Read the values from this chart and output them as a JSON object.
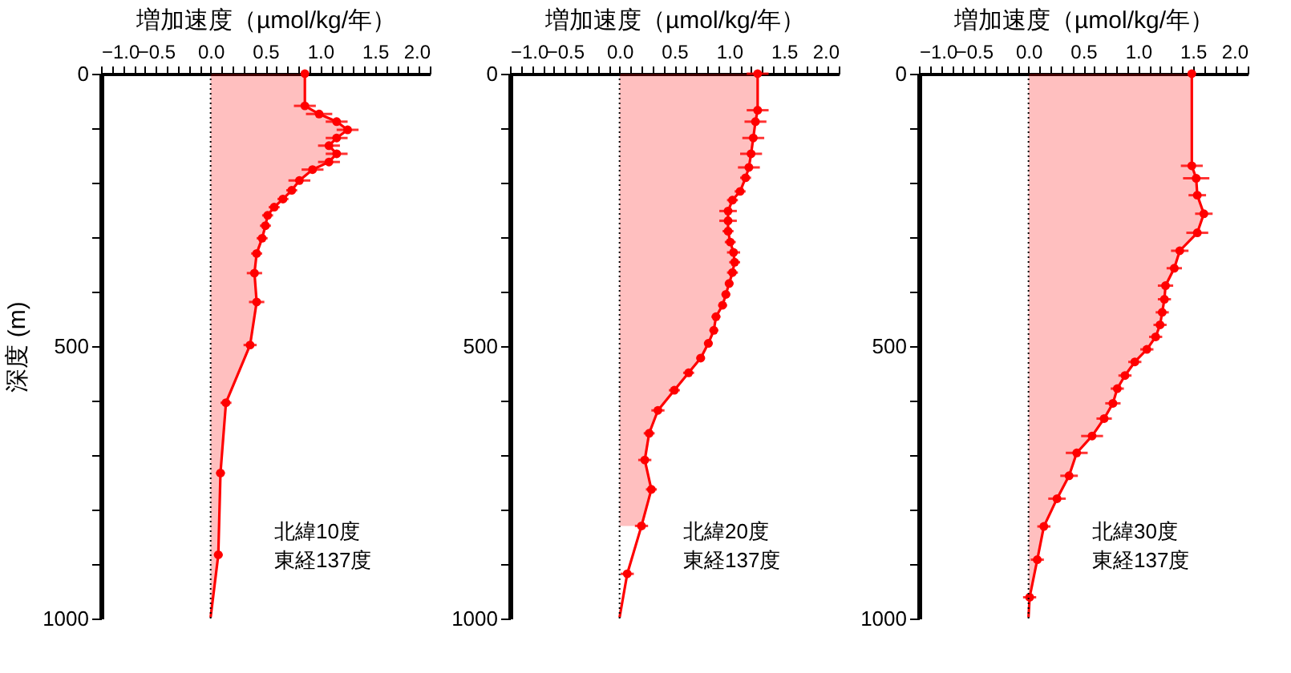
{
  "chart_data": [
    {
      "type": "line",
      "orientation": "horizontal",
      "xlabel": "増加速度（µmol/kg/年）",
      "ylabel": "深度 (m)",
      "xlim": [
        -1,
        2
      ],
      "ylim": [
        1000,
        0
      ],
      "xticks": [
        {
          "value": -1,
          "label": "−1.0"
        },
        {
          "value": -0.9,
          "label": null
        },
        {
          "value": -0.8,
          "label": null
        },
        {
          "value": -0.7,
          "label": null
        },
        {
          "value": -0.6,
          "label": null
        },
        {
          "value": -0.5,
          "label": "−0.5"
        },
        {
          "value": -0.4,
          "label": null
        },
        {
          "value": -0.3,
          "label": null
        },
        {
          "value": -0.2,
          "label": null
        },
        {
          "value": -0.1,
          "label": null
        },
        {
          "value": 0,
          "label": "0.0"
        },
        {
          "value": 0.1,
          "label": null
        },
        {
          "value": 0.2,
          "label": null
        },
        {
          "value": 0.3,
          "label": null
        },
        {
          "value": 0.4,
          "label": null
        },
        {
          "value": 0.5,
          "label": "0.5"
        },
        {
          "value": 0.6,
          "label": null
        },
        {
          "value": 0.7,
          "label": null
        },
        {
          "value": 0.8,
          "label": null
        },
        {
          "value": 0.9,
          "label": null
        },
        {
          "value": 1,
          "label": "1.0"
        },
        {
          "value": 1.1,
          "label": null
        },
        {
          "value": 1.2,
          "label": null
        },
        {
          "value": 1.3,
          "label": null
        },
        {
          "value": 1.4,
          "label": null
        },
        {
          "value": 1.5,
          "label": "1.5"
        },
        {
          "value": 1.6,
          "label": null
        },
        {
          "value": 1.7,
          "label": null
        },
        {
          "value": 1.8,
          "label": null
        },
        {
          "value": 1.9,
          "label": null
        },
        {
          "value": 2,
          "label": "2.0"
        }
      ],
      "yticks": [
        0,
        {
          "value": 100,
          "label": null
        },
        {
          "value": 200,
          "label": null
        },
        {
          "value": 300,
          "label": null
        },
        {
          "value": 400,
          "label": null
        },
        500,
        {
          "value": 600,
          "label": null
        },
        {
          "value": 700,
          "label": null
        },
        {
          "value": 800,
          "label": null
        },
        {
          "value": 900,
          "label": null
        },
        1000
      ],
      "ref_lines": [
        {
          "axis": "x",
          "value": 0,
          "color": "#000000",
          "line_style": "dotted"
        }
      ],
      "annotations": [
        "北緯10度",
        "東経137度"
      ],
      "series": [
        {
          "type": "area",
          "color": "#ff0000",
          "x": [
            0,
            59,
            74,
            88,
            103,
            118,
            132,
            147,
            162,
            176,
            196,
            214,
            230,
            245,
            260,
            279,
            302,
            330,
            366,
            419,
            498,
            604,
            733,
            883,
            998
          ],
          "values": [
            0.86,
            0.86,
            0.99,
            1.15,
            1.25,
            1.15,
            1.08,
            1.15,
            1.08,
            0.93,
            0.81,
            0.74,
            0.66,
            0.58,
            0.52,
            0.5,
            0.47,
            0.42,
            0.4,
            0.42,
            0.36,
            0.14,
            0.09,
            0.07,
            0.0
          ]
        },
        {
          "type": "scatter",
          "marker": "circle",
          "color": "#ff0000",
          "x": [
            0,
            59,
            74,
            88,
            103,
            118,
            132,
            147,
            162,
            176,
            196,
            214,
            230,
            245,
            260,
            279,
            302,
            330,
            366,
            419,
            498,
            604,
            733,
            883
          ],
          "values": [
            0.86,
            0.86,
            0.99,
            1.15,
            1.25,
            1.15,
            1.08,
            1.15,
            1.08,
            0.93,
            0.81,
            0.74,
            0.66,
            0.58,
            0.52,
            0.5,
            0.47,
            0.42,
            0.4,
            0.42,
            0.36,
            0.14,
            0.09,
            0.07
          ],
          "xerrors": [
            null,
            0.1,
            0.12,
            0.1,
            0.1,
            0.1,
            0.1,
            0.1,
            0.1,
            0.1,
            0.1,
            0.05,
            0.05,
            0.05,
            0.05,
            0.05,
            0.05,
            0.05,
            0.07,
            0.07,
            0.06,
            0.05,
            0.04,
            0.04
          ]
        }
      ]
    },
    {
      "type": "line",
      "orientation": "horizontal",
      "xlabel": "増加速度（µmol/kg/年）",
      "xlim": [
        -1,
        2
      ],
      "ylim": [
        1000,
        0
      ],
      "xticks": [
        {
          "value": -1,
          "label": "−1.0"
        },
        {
          "value": -0.9,
          "label": null
        },
        {
          "value": -0.8,
          "label": null
        },
        {
          "value": -0.7,
          "label": null
        },
        {
          "value": -0.6,
          "label": null
        },
        {
          "value": -0.5,
          "label": "−0.5"
        },
        {
          "value": -0.4,
          "label": null
        },
        {
          "value": -0.3,
          "label": null
        },
        {
          "value": -0.2,
          "label": null
        },
        {
          "value": -0.1,
          "label": null
        },
        {
          "value": 0,
          "label": "0.0"
        },
        {
          "value": 0.1,
          "label": null
        },
        {
          "value": 0.2,
          "label": null
        },
        {
          "value": 0.3,
          "label": null
        },
        {
          "value": 0.4,
          "label": null
        },
        {
          "value": 0.5,
          "label": "0.5"
        },
        {
          "value": 0.6,
          "label": null
        },
        {
          "value": 0.7,
          "label": null
        },
        {
          "value": 0.8,
          "label": null
        },
        {
          "value": 0.9,
          "label": null
        },
        {
          "value": 1,
          "label": "1.0"
        },
        {
          "value": 1.1,
          "label": null
        },
        {
          "value": 1.2,
          "label": null
        },
        {
          "value": 1.3,
          "label": null
        },
        {
          "value": 1.4,
          "label": null
        },
        {
          "value": 1.5,
          "label": "1.5"
        },
        {
          "value": 1.6,
          "label": null
        },
        {
          "value": 1.7,
          "label": null
        },
        {
          "value": 1.8,
          "label": null
        },
        {
          "value": 1.9,
          "label": null
        },
        {
          "value": 2,
          "label": "2.0"
        }
      ],
      "yticks": [
        0,
        {
          "value": 100,
          "label": null
        },
        {
          "value": 200,
          "label": null
        },
        {
          "value": 300,
          "label": null
        },
        {
          "value": 400,
          "label": null
        },
        500,
        {
          "value": 600,
          "label": null
        },
        {
          "value": 700,
          "label": null
        },
        {
          "value": 800,
          "label": null
        },
        {
          "value": 900,
          "label": null
        },
        1000
      ],
      "ref_lines": [
        {
          "axis": "x",
          "value": 0,
          "color": "#000000",
          "line_style": "dotted"
        }
      ],
      "annotations": [
        "北緯20度",
        "東経137度"
      ],
      "series": [
        {
          "type": "area",
          "color": "#ff0000",
          "x": [
            0,
            67,
            88,
            118,
            147,
            172,
            191,
            216,
            232,
            252,
            270,
            289,
            309,
            328,
            346,
            365,
            385,
            405,
            425,
            446,
            471,
            495,
            522,
            549,
            581,
            618,
            660,
            709,
            763,
            830
          ],
          "values": [
            1.26,
            1.26,
            1.24,
            1.22,
            1.2,
            1.18,
            1.15,
            1.1,
            1.03,
            0.99,
            0.99,
            0.99,
            1.01,
            1.04,
            1.05,
            1.03,
            1.0,
            0.97,
            0.94,
            0.88,
            0.86,
            0.81,
            0.74,
            0.63,
            0.5,
            0.35,
            0.27,
            0.23,
            0.29,
            0.2
          ]
        },
        {
          "color": "#ff0000",
          "x": [
            830,
            918,
            998
          ],
          "values": [
            0.2,
            0.07,
            0.0
          ]
        },
        {
          "type": "scatter",
          "marker": "circle",
          "color": "#ff0000",
          "x": [
            0,
            67,
            88,
            118,
            147,
            172,
            191,
            216,
            232,
            252,
            270,
            289,
            309,
            328,
            346,
            365,
            385,
            405,
            425,
            446,
            471,
            495,
            522,
            549,
            581,
            618,
            660,
            709,
            763,
            830,
            918
          ],
          "values": [
            1.26,
            1.26,
            1.24,
            1.22,
            1.2,
            1.18,
            1.15,
            1.1,
            1.03,
            0.99,
            0.99,
            0.99,
            1.01,
            1.04,
            1.05,
            1.03,
            1.0,
            0.97,
            0.94,
            0.88,
            0.86,
            0.81,
            0.74,
            0.63,
            0.5,
            0.35,
            0.27,
            0.23,
            0.29,
            0.2,
            0.07
          ],
          "xerrors": [
            0.1,
            0.1,
            0.1,
            0.1,
            0.1,
            0.1,
            0.05,
            0.05,
            0.05,
            0.08,
            0.08,
            0.05,
            0.05,
            0.06,
            0.05,
            0.05,
            0.04,
            0.04,
            0.04,
            0.04,
            0.04,
            0.04,
            0.04,
            0.05,
            0.05,
            0.06,
            0.05,
            0.06,
            0.05,
            0.06,
            0.06
          ]
        }
      ]
    },
    {
      "type": "line",
      "orientation": "horizontal",
      "xlabel": "増加速度（µmol/kg/年）",
      "xlim": [
        -1,
        2
      ],
      "ylim": [
        1000,
        0
      ],
      "xticks": [
        {
          "value": -1,
          "label": "−1.0"
        },
        {
          "value": -0.9,
          "label": null
        },
        {
          "value": -0.8,
          "label": null
        },
        {
          "value": -0.7,
          "label": null
        },
        {
          "value": -0.6,
          "label": null
        },
        {
          "value": -0.5,
          "label": "−0.5"
        },
        {
          "value": -0.4,
          "label": null
        },
        {
          "value": -0.3,
          "label": null
        },
        {
          "value": -0.2,
          "label": null
        },
        {
          "value": -0.1,
          "label": null
        },
        {
          "value": 0,
          "label": "0.0"
        },
        {
          "value": 0.1,
          "label": null
        },
        {
          "value": 0.2,
          "label": null
        },
        {
          "value": 0.3,
          "label": null
        },
        {
          "value": 0.4,
          "label": null
        },
        {
          "value": 0.5,
          "label": "0.5"
        },
        {
          "value": 0.6,
          "label": null
        },
        {
          "value": 0.7,
          "label": null
        },
        {
          "value": 0.8,
          "label": null
        },
        {
          "value": 0.9,
          "label": null
        },
        {
          "value": 1,
          "label": "1.0"
        },
        {
          "value": 1.1,
          "label": null
        },
        {
          "value": 1.2,
          "label": null
        },
        {
          "value": 1.3,
          "label": null
        },
        {
          "value": 1.4,
          "label": null
        },
        {
          "value": 1.5,
          "label": "1.5"
        },
        {
          "value": 1.6,
          "label": null
        },
        {
          "value": 1.7,
          "label": null
        },
        {
          "value": 1.8,
          "label": null
        },
        {
          "value": 1.9,
          "label": null
        },
        {
          "value": 2,
          "label": "2.0"
        }
      ],
      "yticks": [
        0,
        {
          "value": 100,
          "label": null
        },
        {
          "value": 200,
          "label": null
        },
        {
          "value": 300,
          "label": null
        },
        {
          "value": 400,
          "label": null
        },
        500,
        {
          "value": 600,
          "label": null
        },
        {
          "value": 700,
          "label": null
        },
        {
          "value": 800,
          "label": null
        },
        {
          "value": 900,
          "label": null
        },
        1000
      ],
      "ref_lines": [
        {
          "axis": "x",
          "value": 0,
          "color": "#000000",
          "line_style": "dotted"
        }
      ],
      "annotations": [
        "北緯30度",
        "東経137度"
      ],
      "series": [
        {
          "type": "area",
          "color": "#ff0000",
          "x": [
            0,
            169,
            192,
            223,
            257,
            292,
            325,
            357,
            389,
            414,
            438,
            461,
            483,
            506,
            529,
            554,
            578,
            605,
            633,
            665,
            696,
            738,
            780,
            831,
            892,
            961,
            998
          ],
          "values": [
            1.49,
            1.49,
            1.53,
            1.54,
            1.6,
            1.54,
            1.38,
            1.33,
            1.25,
            1.24,
            1.22,
            1.2,
            1.16,
            1.08,
            0.97,
            0.88,
            0.81,
            0.77,
            0.69,
            0.58,
            0.44,
            0.37,
            0.26,
            0.14,
            0.08,
            0.01,
            0.0
          ]
        },
        {
          "type": "scatter",
          "marker": "circle",
          "color": "#ff0000",
          "x": [
            0,
            169,
            192,
            223,
            257,
            292,
            325,
            357,
            389,
            414,
            438,
            461,
            483,
            506,
            529,
            554,
            578,
            605,
            633,
            665,
            696,
            738,
            780,
            831,
            892,
            961
          ],
          "values": [
            1.49,
            1.49,
            1.53,
            1.54,
            1.6,
            1.54,
            1.38,
            1.33,
            1.25,
            1.24,
            1.22,
            1.2,
            1.16,
            1.08,
            0.97,
            0.88,
            0.81,
            0.77,
            0.69,
            0.58,
            0.44,
            0.37,
            0.26,
            0.14,
            0.08,
            0.01
          ],
          "xerrors": [
            null,
            0.1,
            0.12,
            0.08,
            0.08,
            0.1,
            0.08,
            0.07,
            0.07,
            0.06,
            0.06,
            0.06,
            0.06,
            0.06,
            0.06,
            0.06,
            0.06,
            0.07,
            0.07,
            0.1,
            0.1,
            0.08,
            0.08,
            0.06,
            0.06,
            0.06
          ]
        }
      ]
    }
  ]
}
